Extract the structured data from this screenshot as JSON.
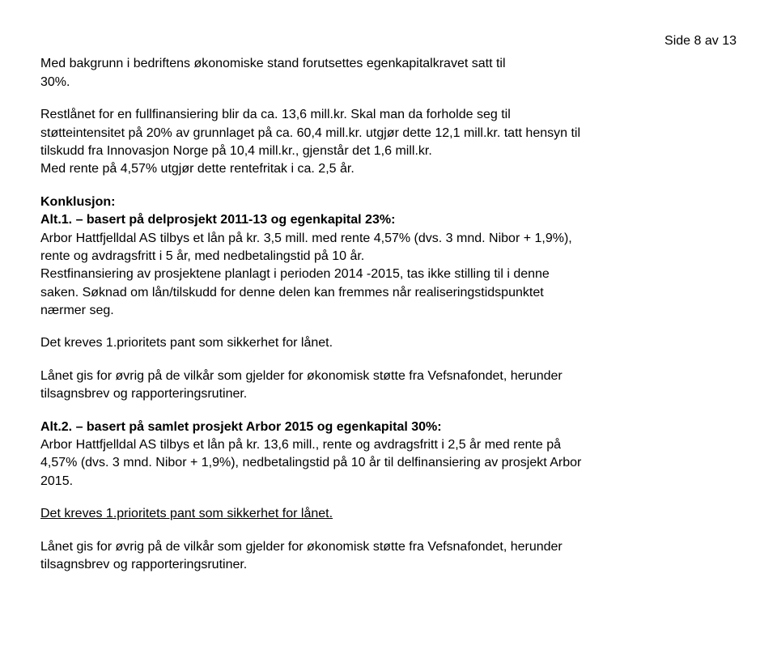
{
  "pageNumber": "Side 8 av 13",
  "intro": {
    "l1": "Med bakgrunn i bedriftens økonomiske stand forutsettes egenkapitalkravet satt til",
    "l2": "30%."
  },
  "restloan": {
    "l1": "Restlånet for en fullfinansiering blir da ca. 13,6 mill.kr. Skal man da forholde seg til",
    "l2": "støtteintensitet på 20% av grunnlaget på ca. 60,4 mill.kr. utgjør dette 12,1 mill.kr. tatt hensyn til",
    "l3": "tilskudd fra Innovasjon Norge på 10,4 mill.kr., gjenstår det 1,6 mill.kr.",
    "l4": "Med rente på 4,57% utgjør dette rentefritak i ca. 2,5 år."
  },
  "konklusjon": {
    "heading": "Konklusjon:",
    "alt1title": "Alt.1. – basert på delprosjekt 2011-13 og egenkapital 23%:",
    "alt1body_l1": "Arbor Hattfjelldal AS tilbys et lån på kr. 3,5 mill. med rente 4,57% (dvs. 3 mnd. Nibor + 1,9%),",
    "alt1body_l2": "rente og avdragsfritt i 5 år,  med nedbetalingstid på 10 år.",
    "alt1body_l3": "Restfinansiering av prosjektene planlagt i perioden 2014 -2015, tas ikke stilling til i denne",
    "alt1body_l4": "saken. Søknad om lån/tilskudd for denne delen kan fremmes når realiseringstidspunktet",
    "alt1body_l5": "nærmer seg."
  },
  "pant1": "Det kreves 1.prioritets pant som sikkerhet for lånet.",
  "vilkar1": {
    "l1": "Lånet gis for øvrig på de vilkår som gjelder for økonomisk støtte fra Vefsnafondet, herunder",
    "l2": "tilsagnsbrev og rapporteringsrutiner."
  },
  "alt2": {
    "title": "Alt.2. – basert på samlet prosjekt Arbor 2015 og egenkapital 30%:",
    "l1a": "Arbor Hattfjelldal AS tilbys et lån på kr. 13,6 mill., rente og avdragsfritt i 2,5 år med rente på",
    "l1b": "4,57% (dvs. 3 mnd. Nibor + 1,9%), nedbetalingstid på 10 år til delfinansiering av prosjekt Arbor",
    "l1c": "2015."
  },
  "pant2": "Det kreves 1.prioritets pant som sikkerhet for lånet.",
  "vilkar2": {
    "l1": "Lånet gis for øvrig på de vilkår som gjelder for økonomisk støtte fra Vefsnafondet, herunder",
    "l2": "tilsagnsbrev og rapporteringsrutiner."
  }
}
